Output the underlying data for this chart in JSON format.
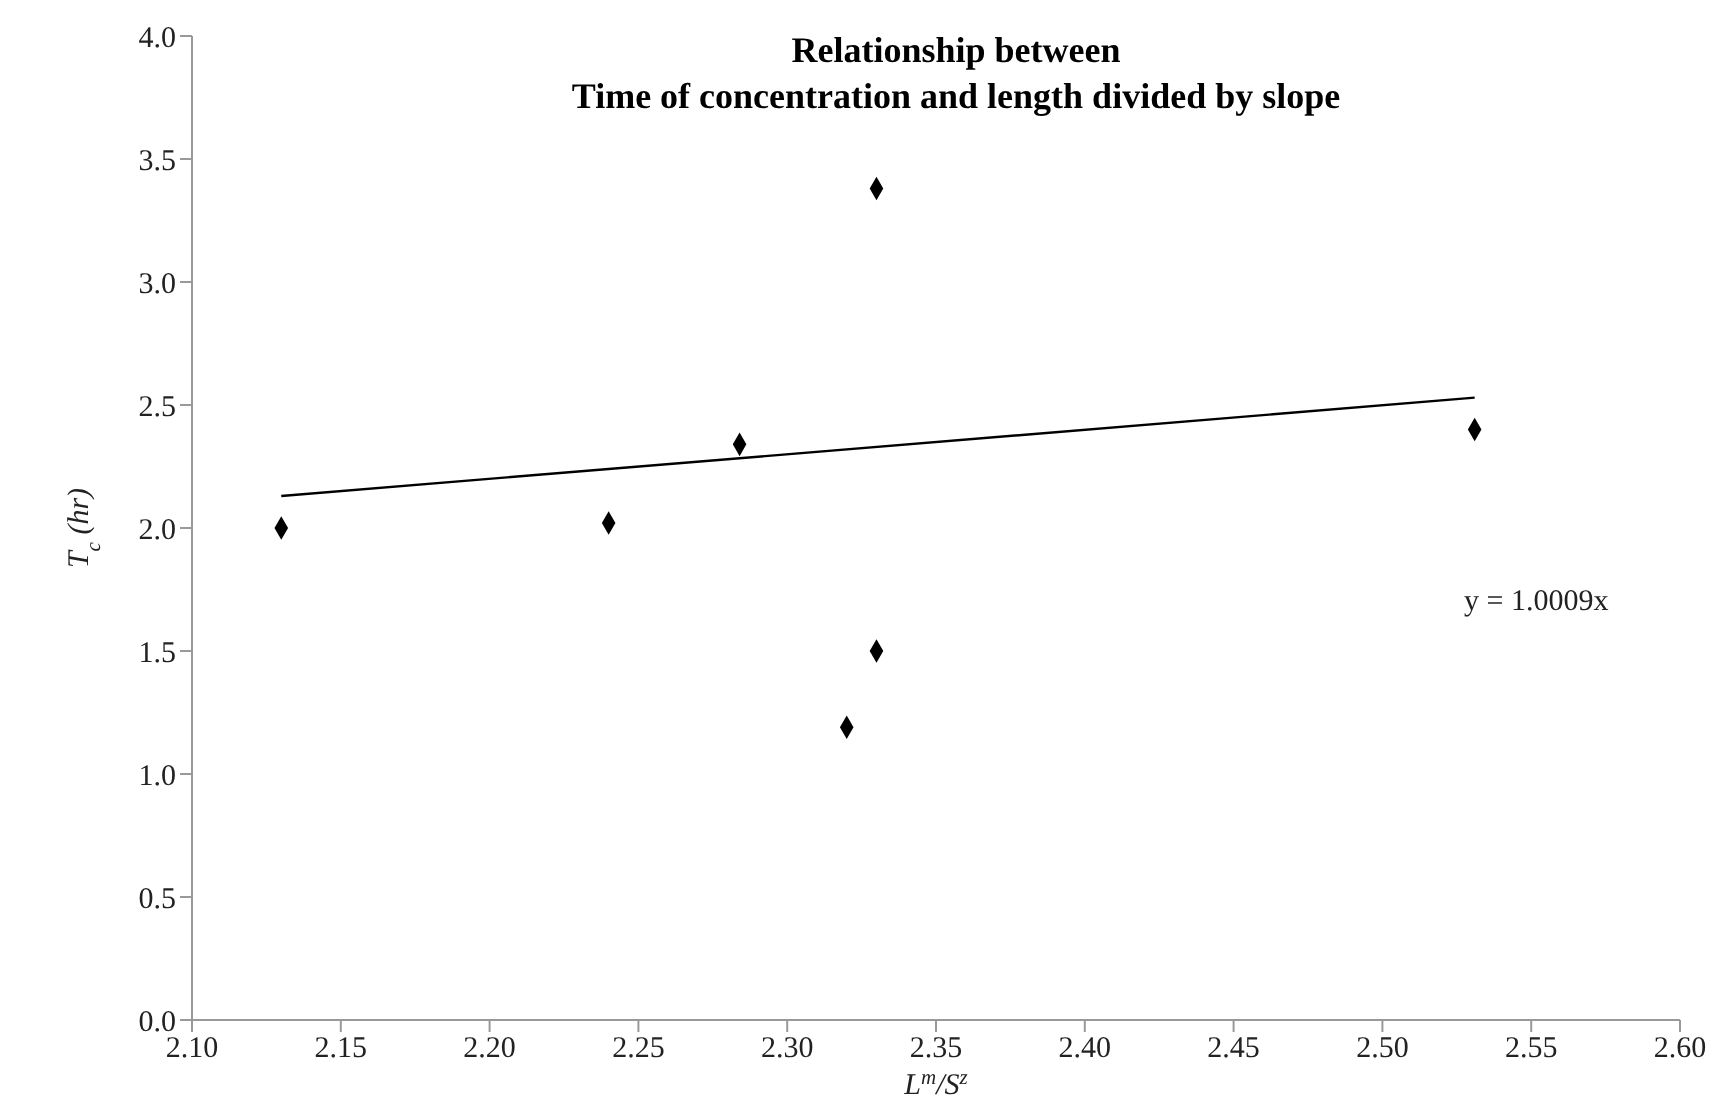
{
  "chart_data": {
    "type": "scatter",
    "title": "Relationship between\nTime of concentration and length divided by slope",
    "xlabel": "L$^{m}$/S$^{z}$",
    "ylabel": "T$_{c}$ (hr)",
    "xlim": [
      2.1,
      2.6
    ],
    "xticks": [
      {
        "value": 2.1,
        "label": "2.10"
      },
      {
        "value": 2.15,
        "label": "2.15"
      },
      {
        "value": 2.2,
        "label": "2.20"
      },
      {
        "value": 2.25,
        "label": "2.25"
      },
      {
        "value": 2.3,
        "label": "2.30"
      },
      {
        "value": 2.35,
        "label": "2.35"
      },
      {
        "value": 2.4,
        "label": "2.40"
      },
      {
        "value": 2.45,
        "label": "2.45"
      },
      {
        "value": 2.5,
        "label": "2.50"
      },
      {
        "value": 2.55,
        "label": "2.55"
      },
      {
        "value": 2.6,
        "label": "2.60"
      }
    ],
    "ylim": [
      0,
      4
    ],
    "yticks": [
      {
        "value": 0,
        "label": "0.0"
      },
      {
        "value": 0.5,
        "label": "0.5"
      },
      {
        "value": 1,
        "label": "1.0"
      },
      {
        "value": 1.5,
        "label": "1.5"
      },
      {
        "value": 2,
        "label": "2.0"
      },
      {
        "value": 2.5,
        "label": "2.5"
      },
      {
        "value": 3,
        "label": "3.0"
      },
      {
        "value": 3.5,
        "label": "3.5"
      },
      {
        "value": 4,
        "label": "4.0"
      }
    ],
    "marker": "diamond",
    "series": [
      {
        "color": "#000000",
        "x": [
          2.13,
          2.24,
          2.284,
          2.32,
          2.33,
          2.33,
          2.531
        ],
        "values": [
          2.0,
          2.02,
          2.34,
          1.19,
          1.5,
          3.38,
          2.4
        ]
      },
      {
        "type": "line",
        "color": "#000000",
        "x": [
          2.13,
          2.531
        ],
        "values": [
          2.13,
          2.53
        ],
        "line_style": "solid",
        "marker": "none"
      }
    ],
    "annotations": [
      "y = 1.0009x"
    ]
  }
}
